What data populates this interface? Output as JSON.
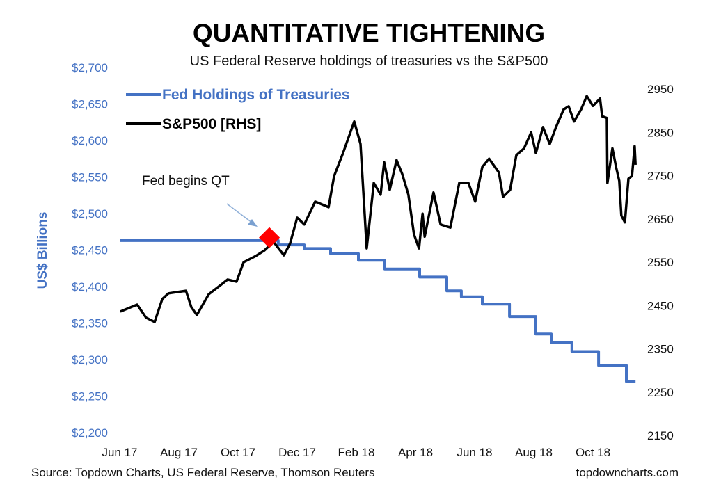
{
  "chart_data": {
    "type": "line",
    "title": "QUANTITATIVE TIGHTENING",
    "subtitle": "US Federal Reserve holdings of treasuries vs the S&P500",
    "ylabel": "US$ Billions",
    "x_unit": "months since Jun 2017",
    "x_ticks": [
      {
        "m": 0,
        "label": "Jun 17"
      },
      {
        "m": 2,
        "label": "Aug 17"
      },
      {
        "m": 4,
        "label": "Oct 17"
      },
      {
        "m": 6,
        "label": "Dec 17"
      },
      {
        "m": 8,
        "label": "Feb 18"
      },
      {
        "m": 10,
        "label": "Apr 18"
      },
      {
        "m": 12,
        "label": "Jun 18"
      },
      {
        "m": 14,
        "label": "Aug 18"
      },
      {
        "m": 16,
        "label": "Oct 18"
      }
    ],
    "ylim_left": [
      2200,
      2700
    ],
    "left_ticks": [
      "$2,200",
      "$2,250",
      "$2,300",
      "$2,350",
      "$2,400",
      "$2,450",
      "$2,500",
      "$2,550",
      "$2,600",
      "$2,650",
      "$2,700"
    ],
    "ylim_right": [
      2150,
      2950
    ],
    "right_ticks": [
      "2150",
      "2250",
      "2350",
      "2450",
      "2550",
      "2650",
      "2750",
      "2850",
      "2950"
    ],
    "legend": {
      "placement": "top-left",
      "entries": [
        "Fed Holdings of Treasuries",
        "S&P500 [RHS]"
      ]
    },
    "series": [
      {
        "name": "Fed Holdings of Treasuries",
        "axis": "left",
        "color": "#4472c4",
        "step": true,
        "points": [
          [
            0,
            2463
          ],
          [
            5.36,
            2457
          ],
          [
            6.24,
            2452
          ],
          [
            7.13,
            2445
          ],
          [
            8.07,
            2436
          ],
          [
            8.96,
            2424
          ],
          [
            10.14,
            2413
          ],
          [
            11.06,
            2394
          ],
          [
            11.55,
            2386
          ],
          [
            12.26,
            2376
          ],
          [
            13.18,
            2359
          ],
          [
            14.07,
            2335
          ],
          [
            14.59,
            2323
          ],
          [
            15.29,
            2311
          ],
          [
            16.19,
            2292
          ],
          [
            17.13,
            2270
          ],
          [
            17.44,
            2270
          ]
        ]
      },
      {
        "name": "S&P500 [RHS]",
        "axis": "right",
        "color": "#000000",
        "points": [
          [
            0.02,
            2436
          ],
          [
            0.59,
            2452
          ],
          [
            0.89,
            2422
          ],
          [
            1.18,
            2412
          ],
          [
            1.44,
            2465
          ],
          [
            1.65,
            2478
          ],
          [
            2.24,
            2484
          ],
          [
            2.42,
            2446
          ],
          [
            2.61,
            2428
          ],
          [
            3.01,
            2476
          ],
          [
            3.41,
            2497
          ],
          [
            3.65,
            2510
          ],
          [
            3.95,
            2505
          ],
          [
            4.19,
            2550
          ],
          [
            4.59,
            2564
          ],
          [
            4.89,
            2577
          ],
          [
            5.2,
            2597
          ],
          [
            5.55,
            2566
          ],
          [
            5.76,
            2593
          ],
          [
            6.0,
            2653
          ],
          [
            6.24,
            2637
          ],
          [
            6.61,
            2690
          ],
          [
            7.06,
            2677
          ],
          [
            7.25,
            2749
          ],
          [
            7.55,
            2802
          ],
          [
            7.93,
            2875
          ],
          [
            8.14,
            2823
          ],
          [
            8.35,
            2582
          ],
          [
            8.59,
            2733
          ],
          [
            8.82,
            2706
          ],
          [
            8.94,
            2781
          ],
          [
            9.13,
            2717
          ],
          [
            9.36,
            2786
          ],
          [
            9.55,
            2754
          ],
          [
            9.76,
            2706
          ],
          [
            9.95,
            2614
          ],
          [
            10.12,
            2582
          ],
          [
            10.24,
            2662
          ],
          [
            10.31,
            2609
          ],
          [
            10.61,
            2711
          ],
          [
            10.85,
            2637
          ],
          [
            11.18,
            2630
          ],
          [
            11.48,
            2733
          ],
          [
            11.79,
            2733
          ],
          [
            12.02,
            2690
          ],
          [
            12.26,
            2770
          ],
          [
            12.49,
            2789
          ],
          [
            12.82,
            2757
          ],
          [
            12.96,
            2701
          ],
          [
            13.2,
            2717
          ],
          [
            13.41,
            2797
          ],
          [
            13.67,
            2813
          ],
          [
            13.91,
            2850
          ],
          [
            14.07,
            2802
          ],
          [
            14.31,
            2862
          ],
          [
            14.54,
            2823
          ],
          [
            14.75,
            2862
          ],
          [
            15.01,
            2903
          ],
          [
            15.18,
            2910
          ],
          [
            15.36,
            2875
          ],
          [
            15.6,
            2903
          ],
          [
            15.79,
            2934
          ],
          [
            16.0,
            2911
          ],
          [
            16.24,
            2928
          ],
          [
            16.31,
            2887
          ],
          [
            16.47,
            2883
          ],
          [
            16.49,
            2733
          ],
          [
            16.66,
            2813
          ],
          [
            16.78,
            2770
          ],
          [
            16.89,
            2738
          ],
          [
            16.96,
            2658
          ],
          [
            17.08,
            2642
          ],
          [
            17.2,
            2743
          ],
          [
            17.32,
            2749
          ],
          [
            17.41,
            2818
          ],
          [
            17.44,
            2775
          ]
        ]
      }
    ],
    "annotation": {
      "text": "Fed begins QT",
      "m": 5.06,
      "value_left": 2467,
      "marker_color": "#ff0000"
    },
    "source": "Source: Topdown Charts, US Federal Reserve, Thomson Reuters",
    "credit": "topdowncharts.com"
  }
}
